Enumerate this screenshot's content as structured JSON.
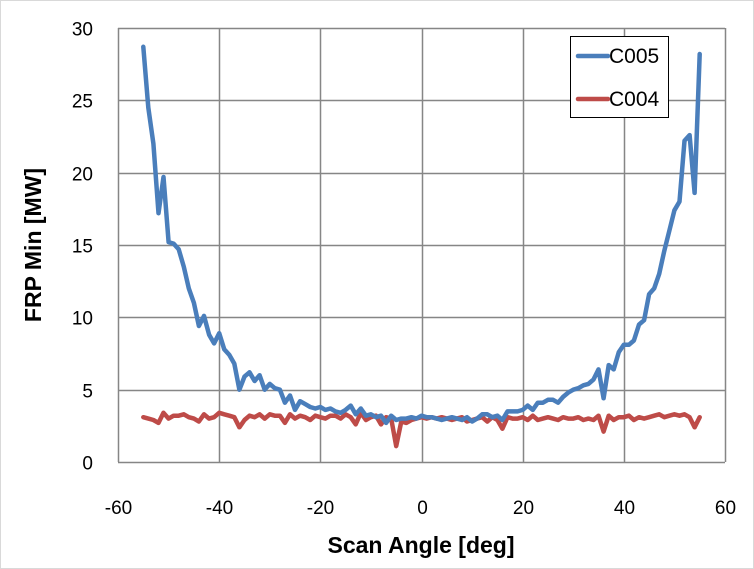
{
  "chart_data": {
    "type": "line",
    "title": "",
    "xlabel": "Scan Angle [deg]",
    "ylabel": "FRP Min [MW]",
    "xlim": [
      -60,
      60
    ],
    "ylim": [
      0,
      30
    ],
    "xticks": [
      -60,
      -40,
      -20,
      0,
      20,
      40,
      60
    ],
    "yticks": [
      0,
      5,
      10,
      15,
      20,
      25,
      30
    ],
    "grid": true,
    "legend_position": "top-right",
    "x": [
      -55,
      -54,
      -53,
      -52,
      -51,
      -50,
      -49,
      -48,
      -47,
      -46,
      -45,
      -44,
      -43,
      -42,
      -41,
      -40,
      -39,
      -38,
      -37,
      -36,
      -35,
      -34,
      -33,
      -32,
      -31,
      -30,
      -29,
      -28,
      -27,
      -26,
      -25,
      -24,
      -23,
      -22,
      -21,
      -20,
      -19,
      -18,
      -17,
      -16,
      -15,
      -14,
      -13,
      -12,
      -11,
      -10,
      -9,
      -8,
      -7,
      -6,
      -5,
      -4,
      -3,
      -2,
      -1,
      0,
      1,
      2,
      3,
      4,
      5,
      6,
      7,
      8,
      9,
      10,
      11,
      12,
      13,
      14,
      15,
      16,
      17,
      18,
      19,
      20,
      21,
      22,
      23,
      24,
      25,
      26,
      27,
      28,
      29,
      30,
      31,
      32,
      33,
      34,
      35,
      36,
      37,
      38,
      39,
      40,
      41,
      42,
      43,
      44,
      45,
      46,
      47,
      48,
      49,
      50,
      51,
      52,
      53,
      54,
      55
    ],
    "series": [
      {
        "name": "C005",
        "color": "#4a7ebb",
        "values": [
          28.7,
          24.5,
          22.0,
          17.2,
          19.7,
          15.2,
          15.1,
          14.7,
          13.5,
          12.0,
          11.0,
          9.4,
          10.1,
          8.8,
          8.2,
          8.9,
          7.8,
          7.4,
          6.8,
          5.0,
          5.9,
          6.2,
          5.6,
          6.0,
          5.0,
          5.4,
          5.1,
          5.0,
          4.1,
          4.6,
          3.6,
          4.2,
          4.0,
          3.8,
          3.7,
          3.8,
          3.6,
          3.7,
          3.5,
          3.4,
          3.6,
          3.9,
          3.3,
          3.7,
          3.2,
          3.3,
          3.1,
          3.2,
          2.7,
          3.2,
          2.9,
          3.0,
          3.0,
          3.1,
          3.0,
          3.2,
          3.1,
          3.1,
          3.0,
          2.9,
          3.0,
          3.1,
          3.0,
          2.9,
          3.1,
          2.8,
          3.0,
          3.3,
          3.3,
          3.1,
          3.2,
          2.9,
          3.5,
          3.5,
          3.5,
          3.6,
          3.9,
          3.6,
          4.1,
          4.1,
          4.3,
          4.3,
          4.1,
          4.5,
          4.8,
          5.0,
          5.1,
          5.3,
          5.4,
          5.7,
          6.4,
          4.4,
          6.7,
          6.4,
          7.6,
          8.1,
          8.1,
          8.4,
          9.5,
          9.8,
          11.6,
          12.0,
          13.0,
          14.6,
          16.0,
          17.4,
          18.0,
          22.2,
          22.6,
          18.6,
          28.2
        ]
      },
      {
        "name": "C004",
        "color": "#be4b48",
        "values": [
          3.1,
          3.0,
          2.9,
          2.7,
          3.4,
          3.0,
          3.2,
          3.2,
          3.3,
          3.1,
          3.0,
          2.8,
          3.3,
          3.0,
          3.1,
          3.4,
          3.3,
          3.2,
          3.1,
          2.4,
          2.9,
          3.2,
          3.1,
          3.3,
          3.0,
          3.3,
          3.2,
          3.2,
          2.7,
          3.3,
          3.0,
          3.2,
          3.1,
          2.9,
          3.2,
          3.1,
          3.0,
          3.2,
          3.2,
          3.0,
          3.3,
          3.1,
          2.6,
          3.4,
          2.9,
          3.1,
          3.2,
          2.6,
          3.1,
          3.0,
          1.1,
          2.8,
          2.7,
          2.9,
          3.0,
          3.1,
          3.0,
          3.1,
          3.0,
          3.1,
          3.0,
          2.9,
          3.0,
          3.1,
          2.8,
          2.9,
          3.0,
          3.1,
          2.8,
          3.1,
          2.9,
          2.3,
          3.1,
          3.0,
          3.0,
          3.1,
          2.9,
          3.2,
          2.9,
          3.0,
          3.1,
          3.0,
          2.9,
          3.1,
          3.0,
          3.0,
          3.1,
          2.9,
          3.0,
          2.9,
          3.2,
          2.1,
          3.2,
          2.9,
          3.1,
          3.1,
          3.2,
          2.9,
          3.1,
          3.0,
          3.1,
          3.2,
          3.3,
          3.1,
          3.2,
          3.3,
          3.2,
          3.3,
          3.1,
          2.4,
          3.1
        ]
      }
    ]
  }
}
